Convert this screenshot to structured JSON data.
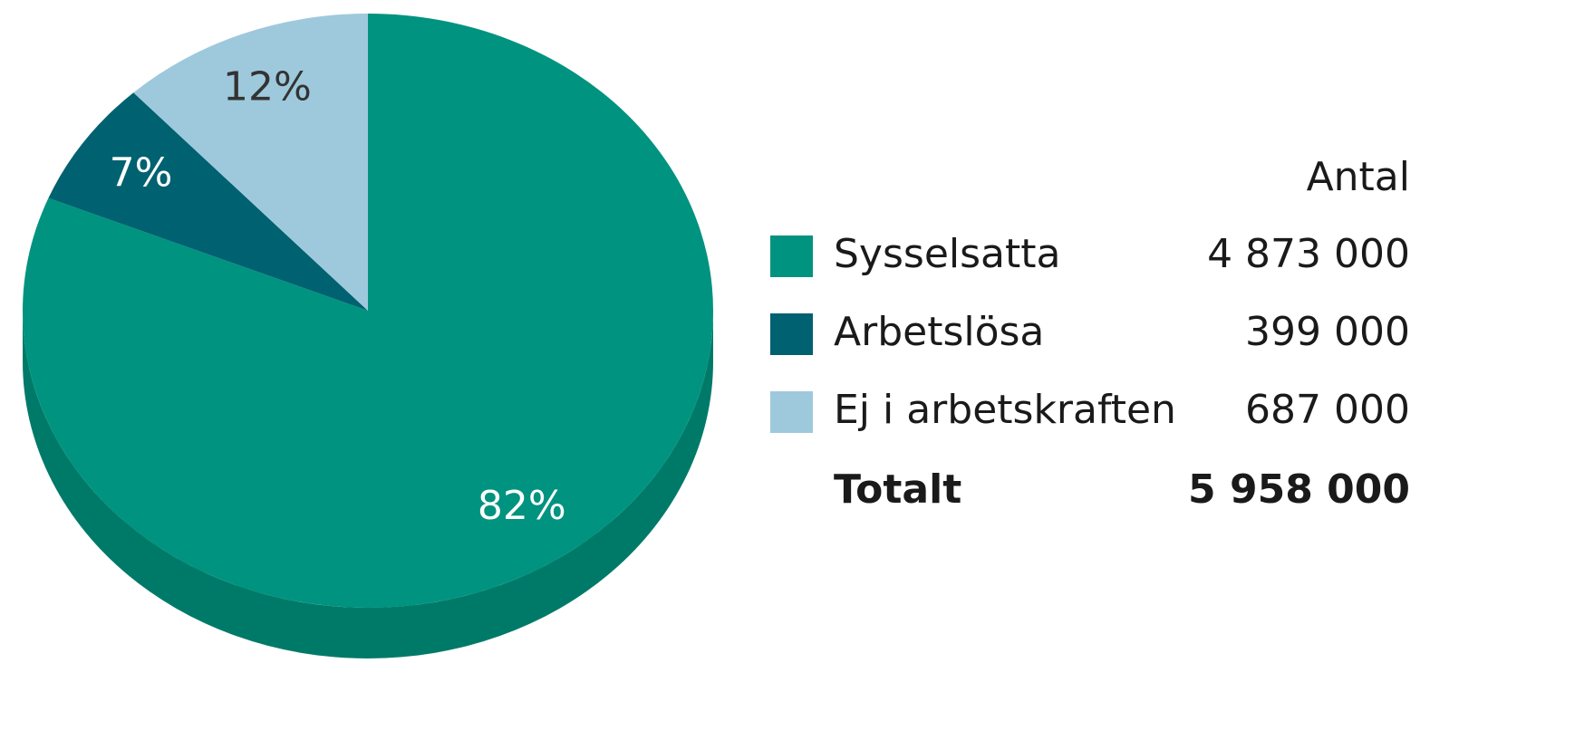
{
  "chart_data": {
    "type": "pie",
    "categories": [
      "Sysselsatta",
      "Arbetslösa",
      "Ej i arbetskraften"
    ],
    "values": [
      82,
      7,
      12
    ],
    "value_labels": [
      "82%",
      "7%",
      "12%"
    ],
    "colors": [
      "#00937f",
      "#006170",
      "#9ec9dc"
    ],
    "label_colors": [
      "#ffffff",
      "#ffffff",
      "#333333"
    ],
    "count_header": "Antal",
    "counts": [
      "4 873 000",
      "399 000",
      "687 000"
    ],
    "total_label": "Totalt",
    "total": "5 958 000"
  }
}
